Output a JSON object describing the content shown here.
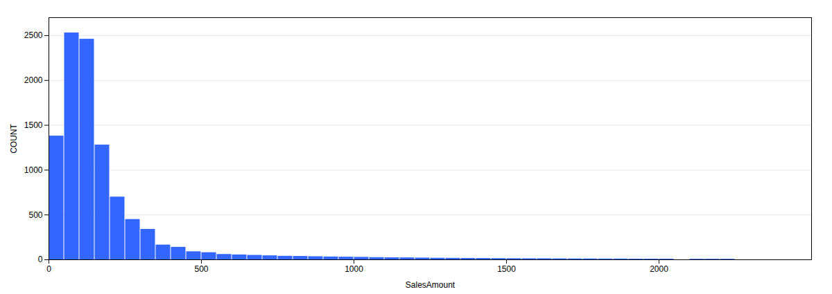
{
  "chart_data": {
    "type": "histogram",
    "xlabel": "SalesAmount",
    "ylabel": "COUNT",
    "color": "#3366ff",
    "bins": [
      0,
      50,
      100,
      150,
      200,
      250,
      300,
      350,
      400,
      450,
      500,
      550,
      600,
      650,
      700,
      750,
      800,
      850,
      900,
      950,
      1000,
      1050,
      1100,
      1150,
      1200,
      1250,
      1300,
      1350,
      1400,
      1450,
      1500,
      1550,
      1600,
      1650,
      1700,
      1750,
      1800,
      1850,
      1900,
      1950,
      2000,
      2050,
      2100,
      2150,
      2200,
      2250,
      2300,
      2350,
      2400,
      2450,
      2500
    ],
    "values": [
      1380,
      2530,
      2460,
      1280,
      700,
      450,
      340,
      165,
      140,
      90,
      80,
      60,
      55,
      50,
      45,
      40,
      38,
      35,
      32,
      30,
      28,
      25,
      23,
      22,
      20,
      18,
      17,
      16,
      15,
      14,
      13,
      12,
      12,
      11,
      10,
      10,
      9,
      9,
      8,
      8,
      8,
      0,
      7,
      7,
      7,
      0,
      0,
      0,
      0,
      0
    ],
    "xlim": [
      0,
      2500
    ],
    "ylim": [
      0,
      2700
    ],
    "xticks": [
      0,
      500,
      1000,
      1500,
      2000
    ],
    "yticks": [
      0,
      500,
      1000,
      1500,
      2000,
      2500
    ],
    "grid": true
  }
}
